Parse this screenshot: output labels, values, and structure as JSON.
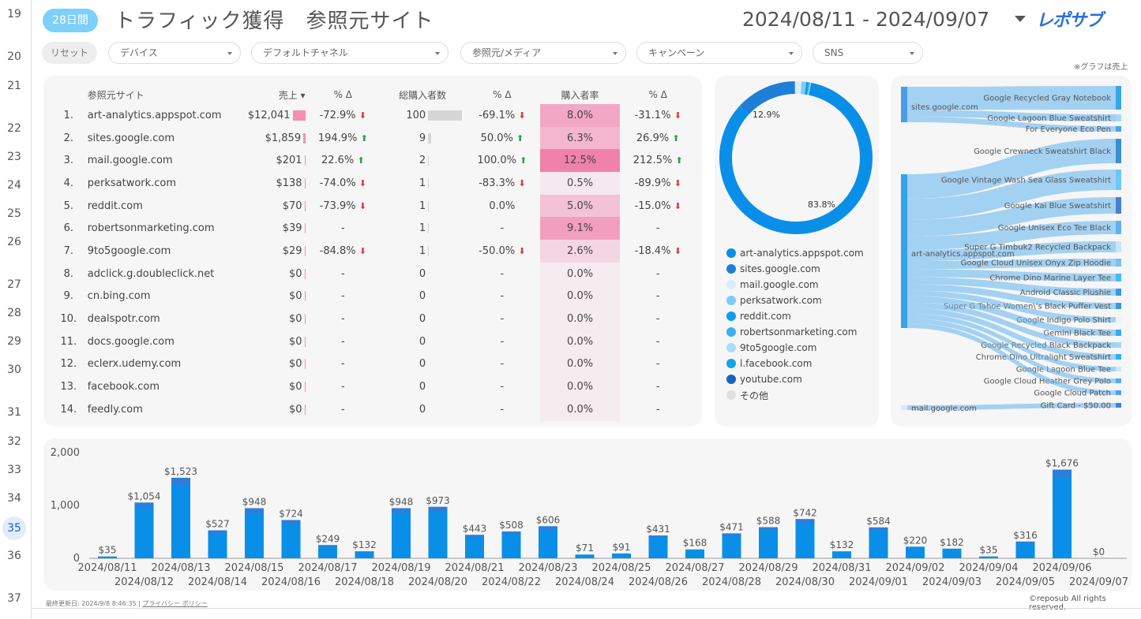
{
  "gutter_rows": [
    {
      "n": "19"
    },
    {
      "n": "20"
    },
    {
      "n": "21"
    },
    {
      "n": "22"
    },
    {
      "n": "23"
    },
    {
      "n": "24"
    },
    {
      "n": "25"
    },
    {
      "n": "26"
    },
    {
      "n": "27"
    },
    {
      "n": "28"
    },
    {
      "n": "29"
    },
    {
      "n": "30"
    },
    {
      "n": "31"
    },
    {
      "n": "32"
    },
    {
      "n": "33"
    },
    {
      "n": "34"
    },
    {
      "n": "35"
    },
    {
      "n": "36"
    },
    {
      "n": "37"
    }
  ],
  "header": {
    "period_badge": "28日間",
    "title": "トラフィック獲得　参照元サイト",
    "date_range": "2024/08/11 - 2024/09/07",
    "logo": "レポサブ"
  },
  "filters": {
    "reset": "リセット",
    "items": [
      "デバイス",
      "デフォルトチャネル",
      "参照元/メディア",
      "キャンペーン",
      "SNS"
    ]
  },
  "note": "※グラフは売上",
  "colors": {
    "accent": "#0a8fe8",
    "pink": "#f08fb0"
  },
  "table": {
    "headers": [
      "参照元サイト",
      "売上 ▾",
      "% Δ",
      "総購入者数",
      "% Δ",
      "購入者率",
      "% Δ"
    ],
    "rows": [
      {
        "rank": "1.",
        "site": "art-analytics.appspot.com",
        "sales": "$12,041",
        "sales_pct": "-72.9%",
        "sd": "dn",
        "buyers": "100",
        "buyers_pct": "-69.1%",
        "bd": "dn",
        "rate": "8.0%",
        "rate_pct": "-31.1%",
        "rd": "dn",
        "salesv": 12041,
        "rate_v": 8.0
      },
      {
        "rank": "2.",
        "site": "sites.google.com",
        "sales": "$1,859",
        "sales_pct": "194.9%",
        "sd": "up",
        "buyers": "9",
        "buyers_pct": "50.0%",
        "bd": "up",
        "rate": "6.3%",
        "rate_pct": "26.9%",
        "rd": "up",
        "salesv": 1859,
        "rate_v": 6.3
      },
      {
        "rank": "3.",
        "site": "mail.google.com",
        "sales": "$201",
        "sales_pct": "22.6%",
        "sd": "up",
        "buyers": "2",
        "buyers_pct": "100.0%",
        "bd": "up",
        "rate": "12.5%",
        "rate_pct": "212.5%",
        "rd": "up",
        "salesv": 201,
        "rate_v": 12.5
      },
      {
        "rank": "4.",
        "site": "perksatwork.com",
        "sales": "$138",
        "sales_pct": "-74.0%",
        "sd": "dn",
        "buyers": "1",
        "buyers_pct": "-83.3%",
        "bd": "dn",
        "rate": "0.5%",
        "rate_pct": "-89.9%",
        "rd": "dn",
        "salesv": 138,
        "rate_v": 0.5
      },
      {
        "rank": "5.",
        "site": "reddit.com",
        "sales": "$70",
        "sales_pct": "-73.9%",
        "sd": "dn",
        "buyers": "1",
        "buyers_pct": "0.0%",
        "bd": "",
        "rate": "5.0%",
        "rate_pct": "-15.0%",
        "rd": "dn",
        "salesv": 70,
        "rate_v": 5.0
      },
      {
        "rank": "6.",
        "site": "robertsonmarketing.com",
        "sales": "$39",
        "sales_pct": "-",
        "sd": "",
        "buyers": "1",
        "buyers_pct": "-",
        "bd": "",
        "rate": "9.1%",
        "rate_pct": "-",
        "rd": "",
        "salesv": 39,
        "rate_v": 9.1
      },
      {
        "rank": "7.",
        "site": "9to5google.com",
        "sales": "$29",
        "sales_pct": "-84.8%",
        "sd": "dn",
        "buyers": "1",
        "buyers_pct": "-50.0%",
        "bd": "dn",
        "rate": "2.6%",
        "rate_pct": "-18.4%",
        "rd": "dn",
        "salesv": 29,
        "rate_v": 2.6
      },
      {
        "rank": "8.",
        "site": "adclick.g.doubleclick.net",
        "sales": "$0",
        "sales_pct": "-",
        "sd": "",
        "buyers": "0",
        "buyers_pct": "-",
        "bd": "",
        "rate": "0.0%",
        "rate_pct": "-",
        "rd": "",
        "salesv": 0,
        "rate_v": 0
      },
      {
        "rank": "9.",
        "site": "cn.bing.com",
        "sales": "$0",
        "sales_pct": "-",
        "sd": "",
        "buyers": "0",
        "buyers_pct": "-",
        "bd": "",
        "rate": "0.0%",
        "rate_pct": "-",
        "rd": "",
        "salesv": 0,
        "rate_v": 0
      },
      {
        "rank": "10.",
        "site": "dealspotr.com",
        "sales": "$0",
        "sales_pct": "-",
        "sd": "",
        "buyers": "0",
        "buyers_pct": "-",
        "bd": "",
        "rate": "0.0%",
        "rate_pct": "-",
        "rd": "",
        "salesv": 0,
        "rate_v": 0
      },
      {
        "rank": "11.",
        "site": "docs.google.com",
        "sales": "$0",
        "sales_pct": "-",
        "sd": "",
        "buyers": "0",
        "buyers_pct": "-",
        "bd": "",
        "rate": "0.0%",
        "rate_pct": "-",
        "rd": "",
        "salesv": 0,
        "rate_v": 0
      },
      {
        "rank": "12.",
        "site": "eclerx.udemy.com",
        "sales": "$0",
        "sales_pct": "-",
        "sd": "",
        "buyers": "0",
        "buyers_pct": "-",
        "bd": "",
        "rate": "0.0%",
        "rate_pct": "-",
        "rd": "",
        "salesv": 0,
        "rate_v": 0
      },
      {
        "rank": "13.",
        "site": "facebook.com",
        "sales": "$0",
        "sales_pct": "-",
        "sd": "",
        "buyers": "0",
        "buyers_pct": "-",
        "bd": "",
        "rate": "0.0%",
        "rate_pct": "-",
        "rd": "",
        "salesv": 0,
        "rate_v": 0
      },
      {
        "rank": "14.",
        "site": "feedly.com",
        "sales": "$0",
        "sales_pct": "-",
        "sd": "",
        "buyers": "0",
        "buyers_pct": "-",
        "bd": "",
        "rate": "0.0%",
        "rate_pct": "-",
        "rd": "",
        "salesv": 0,
        "rate_v": 0
      }
    ]
  },
  "donut": {
    "labels": [
      "83.8%",
      "12.9%"
    ],
    "slices": [
      {
        "name": "art-analytics.appspot.com",
        "value": 83.8,
        "color": "#0a8fe8"
      },
      {
        "name": "sites.google.com",
        "value": 12.9,
        "color": "#1e7fd8"
      },
      {
        "name": "mail.google.com",
        "value": 1.4,
        "color": "#d8eefc"
      },
      {
        "name": "perksatwork.com",
        "value": 1.0,
        "color": "#7fcaf5"
      },
      {
        "name": "reddit.com",
        "value": 0.5,
        "color": "#0a9df0"
      },
      {
        "name": "robertsonmarketing.com",
        "value": 0.3,
        "color": "#3ab0f2"
      },
      {
        "name": "9to5google.com",
        "value": 0.2,
        "color": "#a9dcfa"
      },
      {
        "name": "l.facebook.com",
        "value": 0,
        "color": "#13a4ec"
      },
      {
        "name": "youtube.com",
        "value": 0,
        "color": "#1565c0"
      },
      {
        "name": "その他",
        "value": 0,
        "color": "#e0e0e0"
      }
    ]
  },
  "sankey": {
    "sources": [
      "sites.google.com",
      "art-analytics.appspot.com",
      "mail.google.com"
    ],
    "targets": [
      "Google Recycled Gray Notebook",
      "Google Lagoon Blue Sweatshirt",
      "For Everyone Eco Pen",
      "Google Crewneck Sweatshirt Black",
      "Google Vintage Wash Sea Glass Sweatshirt",
      "Google Kai Blue Sweatshirt",
      "Google Unisex Eco Tee Black",
      "Super G Timbuk2 Recycled Backpack",
      "Google Cloud Unisex Onyx Zip Hoodie",
      "Chrome Dino Marine Layer Tee",
      "Android Classic Plushie",
      "Super G Tahoe Women\\'s Black Puffer Vest",
      "Google Indigo Polo Shirt",
      "Gemini Black Tee",
      "Google Recycled Black Backpack",
      "Chrome Dino Ultralight Sweatshirt",
      "Google Lagoon Blue Tee",
      "Google Cloud Heather Grey Polo",
      "Google Cloud Patch",
      "Gift Card - $50.00"
    ]
  },
  "chart_data": {
    "type": "bar",
    "title": "",
    "xlabel": "",
    "ylabel": "",
    "ylim": [
      0,
      2000
    ],
    "yticks": [
      "0",
      "1,000",
      "2,000"
    ],
    "categories": [
      "2024/08/11",
      "2024/08/12",
      "2024/08/13",
      "2024/08/14",
      "2024/08/15",
      "2024/08/16",
      "2024/08/17",
      "2024/08/18",
      "2024/08/19",
      "2024/08/20",
      "2024/08/21",
      "2024/08/22",
      "2024/08/23",
      "2024/08/24",
      "2024/08/25",
      "2024/08/26",
      "2024/08/27",
      "2024/08/28",
      "2024/08/29",
      "2024/08/30",
      "2024/08/31",
      "2024/09/01",
      "2024/09/02",
      "2024/09/03",
      "2024/09/04",
      "2024/09/05",
      "2024/09/06",
      "2024/09/07"
    ],
    "values": [
      35,
      1054,
      1523,
      527,
      948,
      724,
      249,
      132,
      948,
      973,
      443,
      508,
      606,
      71,
      91,
      431,
      168,
      471,
      588,
      742,
      132,
      584,
      220,
      182,
      35,
      316,
      1676,
      0
    ],
    "labels": [
      "$35",
      "$1,054",
      "$1,523",
      "$527",
      "$948",
      "$724",
      "$249",
      "$132",
      "$948",
      "$973",
      "$443",
      "$508",
      "$606",
      "$71",
      "$91",
      "$431",
      "$168",
      "$471",
      "$588",
      "$742",
      "$132",
      "$584",
      "$220",
      "$182",
      "$35",
      "$316",
      "$1,676",
      "$0"
    ]
  },
  "footer": {
    "updated": "最終更新日: 2024/9/8 8:46:35",
    "privacy": "プライバシー ポリシー",
    "copyright": "©reposub All rights reserved."
  }
}
